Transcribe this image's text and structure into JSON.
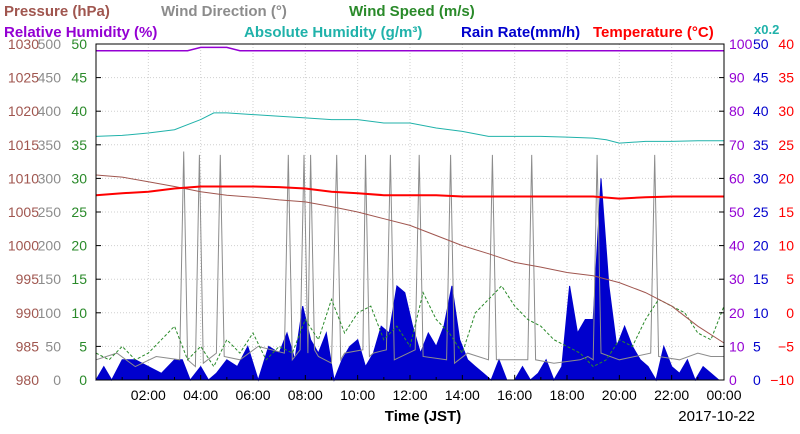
{
  "chart_data": {
    "type": "line",
    "legend": {
      "row1": [
        {
          "key": "pressure",
          "label": "Pressure (hPa)",
          "color": "#a0564f"
        },
        {
          "key": "wind_direction",
          "label": "Wind Direction (°)",
          "color": "#8c8c8c"
        },
        {
          "key": "wind_speed",
          "label": "Wind Speed (m/s)",
          "color": "#2a8a2a"
        }
      ],
      "row2": [
        {
          "key": "relative_humidity",
          "label": "Relative Humidity (%)",
          "color": "#9400d3"
        },
        {
          "key": "absolute_humidity",
          "label": "Absolute Humidity (g/m³)",
          "color": "#20b2aa"
        },
        {
          "key": "rain_rate",
          "label": "Rain Rate(mm/h)",
          "color": "#0000cd"
        },
        {
          "key": "temperature",
          "label": "Temperature (°C)",
          "color": "#ff0000"
        }
      ],
      "abs_humidity_scale_note": "x0.2"
    },
    "xlabel": "Time (JST)",
    "date_label": "2017-10-22",
    "x_ticks": [
      "02:00",
      "04:00",
      "06:00",
      "08:00",
      "10:00",
      "12:00",
      "14:00",
      "16:00",
      "18:00",
      "20:00",
      "22:00",
      "00:00"
    ],
    "x_range_hours": [
      0,
      24
    ],
    "axes": {
      "pressure": {
        "ticks": [
          980,
          985,
          990,
          995,
          1000,
          1005,
          1010,
          1015,
          1020,
          1025,
          1030
        ],
        "range": [
          980,
          1030
        ]
      },
      "wind_direction": {
        "ticks": [
          0,
          50,
          100,
          150,
          200,
          250,
          300,
          350,
          400,
          450,
          500
        ],
        "range": [
          0,
          500
        ]
      },
      "wind_speed": {
        "ticks": [
          0,
          5,
          10,
          15,
          20,
          25,
          30,
          35,
          40,
          45,
          50
        ],
        "range": [
          0,
          50
        ]
      },
      "relative_humidity": {
        "ticks": [
          0,
          10,
          20,
          30,
          40,
          50,
          60,
          70,
          80,
          90,
          100
        ],
        "range": [
          0,
          100
        ]
      },
      "rain_rate": {
        "ticks": [
          0,
          5,
          10,
          15,
          20,
          25,
          30,
          35,
          40,
          45,
          50
        ],
        "range": [
          0,
          50
        ]
      },
      "temperature": {
        "ticks": [
          "−10",
          "−5",
          "0",
          "5",
          "10",
          "15",
          "20",
          "25",
          "30",
          "35",
          "40"
        ],
        "range": [
          -10,
          40
        ]
      }
    },
    "series": [
      {
        "name": "Pressure (hPa)",
        "key": "pressure",
        "color": "#a0564f",
        "x": [
          0,
          1,
          2,
          3,
          4,
          5,
          6,
          7,
          8,
          9,
          10,
          11,
          12,
          13,
          14,
          15,
          16,
          17,
          18,
          19,
          20,
          21,
          22,
          23,
          24
        ],
        "y": [
          1010.5,
          1010.2,
          1009.5,
          1008.8,
          1008,
          1007.5,
          1007.2,
          1006.8,
          1006.5,
          1005.8,
          1005,
          1004,
          1003,
          1001.5,
          1000,
          998.8,
          997.5,
          996.8,
          996,
          995.5,
          994.5,
          993,
          991,
          988,
          985.5
        ]
      },
      {
        "name": "Relative Humidity (%)",
        "key": "relative_humidity",
        "color": "#9400d3",
        "x": [
          0,
          3.5,
          4,
          5,
          5.5,
          8,
          12,
          16,
          20,
          24
        ],
        "y": [
          98,
          98,
          99,
          99,
          98,
          98,
          98,
          98,
          98,
          98
        ]
      },
      {
        "name": "Absolute Humidity (g/m³)",
        "key": "absolute_humidity",
        "color": "#20b2aa",
        "x": [
          0,
          1,
          2,
          3,
          4,
          4.5,
          5,
          6,
          7,
          8,
          9,
          10,
          11,
          12,
          13,
          14,
          15,
          16,
          17,
          18,
          19,
          19.5,
          20,
          21,
          22,
          23,
          24
        ],
        "y": [
          72.5,
          72.8,
          73.5,
          74.5,
          77.5,
          79.5,
          79.5,
          79,
          78.5,
          78,
          77.5,
          77.5,
          76.5,
          76.5,
          75,
          74,
          72.5,
          72.5,
          72.5,
          72.3,
          72,
          71.5,
          70.5,
          71,
          71,
          71.2,
          71.2
        ]
      },
      {
        "name": "Temperature (°C)",
        "key": "temperature",
        "color": "#ff0000",
        "x": [
          0,
          1,
          2,
          3,
          4,
          5,
          6,
          7,
          8,
          9,
          10,
          11,
          12,
          13,
          14,
          15,
          16,
          17,
          18,
          19,
          20,
          21,
          22,
          23,
          24
        ],
        "y": [
          17.5,
          17.8,
          18,
          18.5,
          18.8,
          18.8,
          18.8,
          18.7,
          18.5,
          18,
          17.8,
          17.5,
          17.5,
          17.5,
          17.3,
          17.3,
          17.3,
          17.3,
          17.3,
          17.3,
          17,
          17.2,
          17.3,
          17.3,
          17.3
        ]
      },
      {
        "name": "Wind Speed (m/s)",
        "key": "wind_speed",
        "color": "#2a8a2a",
        "x": [
          0,
          0.5,
          1,
          1.5,
          2,
          2.5,
          3,
          3.5,
          4,
          4.5,
          5,
          5.5,
          6,
          6.5,
          7,
          7.5,
          8,
          8.5,
          9,
          9.5,
          10,
          10.5,
          11,
          11.5,
          12,
          12.5,
          13,
          13.5,
          14,
          14.5,
          15,
          15.5,
          16,
          16.5,
          17,
          17.5,
          18,
          18.5,
          19,
          19.5,
          20,
          20.5,
          21,
          21.5,
          22,
          22.5,
          23,
          23.5,
          24
        ],
        "y": [
          4,
          3,
          5,
          3,
          4,
          6,
          8,
          3,
          5,
          2,
          6,
          4,
          7,
          3,
          5,
          4,
          9,
          6,
          12,
          7,
          10,
          11,
          6,
          8,
          5,
          13,
          9,
          7,
          4,
          10,
          12,
          14,
          11,
          9,
          8,
          6,
          5,
          4,
          2,
          3,
          6,
          5,
          9,
          12,
          11,
          10,
          7,
          6,
          11
        ]
      },
      {
        "name": "Wind Direction (°)",
        "key": "wind_direction",
        "color": "#8c8c8c",
        "x": [
          0,
          0.8,
          1.5,
          2.3,
          3.2,
          3.35,
          3.5,
          3.8,
          3.95,
          4.1,
          4.6,
          4.75,
          4.9,
          5.5,
          6.2,
          7.2,
          7.35,
          7.5,
          7.8,
          7.95,
          8.1,
          8.2,
          8.35,
          8.5,
          9.0,
          9.2,
          9.35,
          9.5,
          10.2,
          10.3,
          10.45,
          10.6,
          11.1,
          11.25,
          11.4,
          12.2,
          12.35,
          12.5,
          13.4,
          13.55,
          13.7,
          14.2,
          15.0,
          15.15,
          15.3,
          16.5,
          16.65,
          16.8,
          17.5,
          18.5,
          18.8,
          19.0,
          19.15,
          19.3,
          20.0,
          21.2,
          21.35,
          21.5,
          22.3,
          23.0,
          23.5,
          24
        ],
        "y": [
          30,
          40,
          20,
          35,
          30,
          340,
          30,
          20,
          335,
          25,
          40,
          335,
          35,
          30,
          50,
          40,
          335,
          30,
          45,
          335,
          40,
          335,
          45,
          35,
          25,
          335,
          30,
          40,
          45,
          335,
          35,
          40,
          45,
          335,
          30,
          45,
          335,
          35,
          30,
          335,
          25,
          40,
          30,
          335,
          30,
          30,
          335,
          30,
          25,
          30,
          35,
          30,
          335,
          40,
          30,
          40,
          335,
          35,
          30,
          40,
          35,
          35
        ]
      },
      {
        "name": "Rain Rate(mm/h)",
        "key": "rain_rate",
        "color": "#0000cd",
        "x": [
          0,
          0.3,
          0.6,
          1,
          1.5,
          2,
          2.5,
          3,
          3.3,
          3.6,
          4,
          4.3,
          4.6,
          5,
          5.4,
          5.8,
          6.2,
          6.6,
          7,
          7.3,
          7.6,
          7.9,
          8.2,
          8.5,
          8.8,
          9.1,
          9.4,
          9.7,
          10,
          10.3,
          10.6,
          10.9,
          11.2,
          11.5,
          11.8,
          12.1,
          12.4,
          12.7,
          13,
          13.3,
          13.6,
          13.9,
          14.2,
          14.5,
          14.8,
          15.1,
          15.4,
          15.7,
          16,
          16.3,
          16.6,
          16.9,
          17.2,
          17.5,
          17.8,
          18.1,
          18.4,
          18.7,
          19,
          19.3,
          19.6,
          19.9,
          20.2,
          20.5,
          20.8,
          21.1,
          21.4,
          21.7,
          22,
          22.3,
          22.6,
          22.9,
          23.2,
          23.5,
          23.8,
          24
        ],
        "y": [
          0,
          2,
          0,
          3,
          3,
          2,
          1,
          3,
          3,
          0,
          2,
          0,
          1,
          3,
          2,
          5,
          0,
          5,
          4,
          7,
          3,
          11,
          6,
          4,
          7,
          0,
          3,
          5,
          6,
          2,
          4,
          8,
          7,
          14,
          13,
          8,
          4,
          7,
          5,
          8,
          14,
          6,
          3,
          2,
          1,
          0,
          3,
          0,
          0,
          2,
          0,
          1,
          3,
          0,
          2,
          14,
          7,
          9,
          9,
          30,
          14,
          5,
          8,
          5,
          3,
          2,
          0,
          5,
          2,
          1,
          3,
          0,
          2,
          1,
          0,
          0
        ]
      }
    ]
  }
}
